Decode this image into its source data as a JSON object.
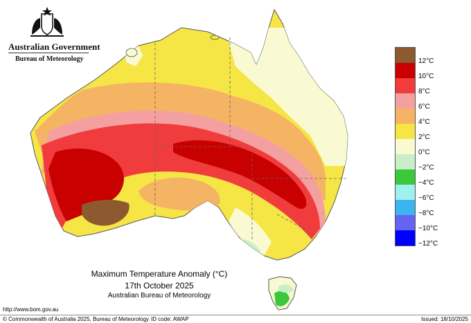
{
  "header": {
    "government": "Australian Government",
    "bureau": "Bureau of Meteorology"
  },
  "map": {
    "title": "Maximum Temperature Anomaly (°C)",
    "date": "17th October 2025",
    "source": "Australian Bureau of Meteorology"
  },
  "legend": {
    "colors": [
      "#8c5a2e",
      "#c80000",
      "#f03c3c",
      "#f5a0a0",
      "#f5b464",
      "#f5e646",
      "#fafad2",
      "#c8f0c8",
      "#3cc83c",
      "#a0f0f0",
      "#3cb4f0",
      "#6464f0",
      "#0000ff"
    ],
    "labels": [
      "12°C",
      "10°C",
      "8°C",
      "6°C",
      "4°C",
      "2°C",
      "0°C",
      "−2°C",
      "−4°C",
      "−6°C",
      "−8°C",
      "−10°C",
      "−12°C"
    ]
  },
  "footer": {
    "url": "http://www.bom.gov.au",
    "copyright": "© Commonwealth of Australia 2025, Bureau of Meteorology",
    "id_code": "ID code: AWAP",
    "issued": "Issued: 18/10/2025"
  }
}
